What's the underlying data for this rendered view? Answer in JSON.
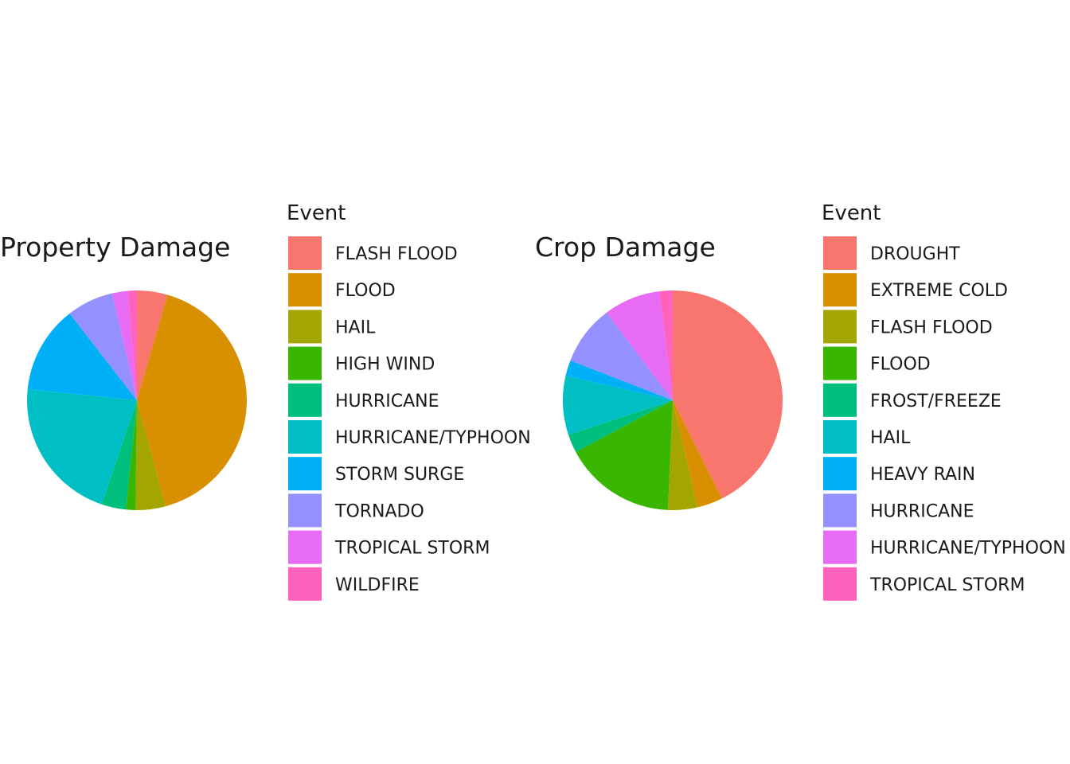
{
  "chart_data": [
    {
      "type": "pie",
      "title": "Property Damage",
      "legend_title": "Event",
      "legend_position": "right",
      "start_angle_deg": 0,
      "direction": "clockwise",
      "slices": [
        {
          "label": "FLASH FLOOD",
          "value": 4.5,
          "color": "#F8766D"
        },
        {
          "label": "FLOOD",
          "value": 41.3,
          "color": "#D89000"
        },
        {
          "label": "HAIL",
          "value": 4.4,
          "color": "#A3A500"
        },
        {
          "label": "HIGH WIND",
          "value": 1.4,
          "color": "#39B600"
        },
        {
          "label": "HURRICANE",
          "value": 3.6,
          "color": "#00BF7D"
        },
        {
          "label": "HURRICANE/TYPHOON",
          "value": 21.4,
          "color": "#00BFC4"
        },
        {
          "label": "STORM SURGE",
          "value": 12.9,
          "color": "#00B0F6"
        },
        {
          "label": "TORNADO",
          "value": 6.9,
          "color": "#9590FF"
        },
        {
          "label": "TROPICAL STORM",
          "value": 2.3,
          "color": "#E76BF3"
        },
        {
          "label": "WILDFIRE",
          "value": 1.3,
          "color": "#FF62BC"
        }
      ]
    },
    {
      "type": "pie",
      "title": "Crop Damage",
      "legend_title": "Event",
      "legend_position": "right",
      "start_angle_deg": 0,
      "direction": "clockwise",
      "slices": [
        {
          "label": "DROUGHT",
          "value": 42.6,
          "color": "#F8766D"
        },
        {
          "label": "EXTREME COLD",
          "value": 3.8,
          "color": "#D89000"
        },
        {
          "label": "FLASH FLOOD",
          "value": 4.3,
          "color": "#A3A500"
        },
        {
          "label": "FLOOD",
          "value": 16.5,
          "color": "#39B600"
        },
        {
          "label": "FROST/FREEZE",
          "value": 2.7,
          "color": "#00BF7D"
        },
        {
          "label": "HAIL",
          "value": 8.7,
          "color": "#00BFC4"
        },
        {
          "label": "HEAVY RAIN",
          "value": 2.3,
          "color": "#00B0F6"
        },
        {
          "label": "HURRICANE",
          "value": 8.8,
          "color": "#9590FF"
        },
        {
          "label": "HURRICANE/TYPHOON",
          "value": 8.4,
          "color": "#E76BF3"
        },
        {
          "label": "TROPICAL STORM",
          "value": 1.9,
          "color": "#FF62BC"
        }
      ]
    }
  ]
}
